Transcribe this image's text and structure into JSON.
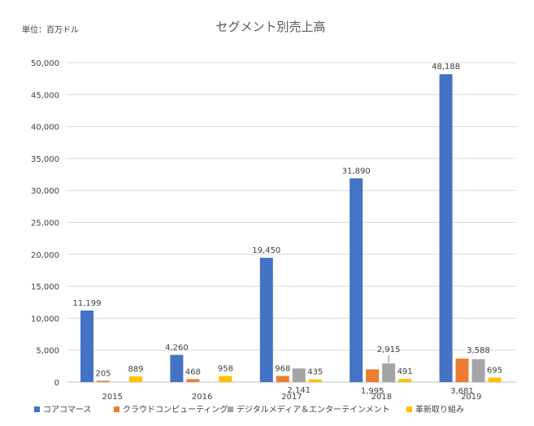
{
  "chart_data": {
    "type": "bar",
    "title": "セグメント別売上高",
    "unit_label": "単位：百万ドル",
    "categories": [
      "2015",
      "2016",
      "2017",
      "2018",
      "2019"
    ],
    "ylim": [
      0,
      50000
    ],
    "yticks": [
      "0",
      "5,000",
      "10,000",
      "15,000",
      "20,000",
      "25,000",
      "30,000",
      "35,000",
      "40,000",
      "45,000",
      "50,000"
    ],
    "grid": true,
    "legend_position": "bottom",
    "series": [
      {
        "name": "コアコマース",
        "color": "#4472C4",
        "values": [
          11199,
          4260,
          19450,
          31890,
          48188
        ],
        "labels": [
          "11,199",
          "4,260",
          "19,450",
          "31,890",
          "48,188"
        ]
      },
      {
        "name": "クラウドコンピューティング",
        "color": "#ED7D31",
        "values": [
          205,
          468,
          968,
          1995,
          3681
        ],
        "labels": [
          "205",
          "468",
          "968",
          "1,995",
          "3,681"
        ]
      },
      {
        "name": "デジタルメディア＆エンターテインメント",
        "color": "#A5A5A5",
        "values": [
          null,
          null,
          2141,
          2915,
          3588
        ],
        "labels": [
          "",
          "",
          "2,141",
          "2,915",
          "3,588"
        ]
      },
      {
        "name": "革新取り組み",
        "color": "#FFC000",
        "values": [
          889,
          958,
          435,
          491,
          695
        ],
        "labels": [
          "889",
          "958",
          "435",
          "491",
          "695"
        ]
      }
    ]
  }
}
